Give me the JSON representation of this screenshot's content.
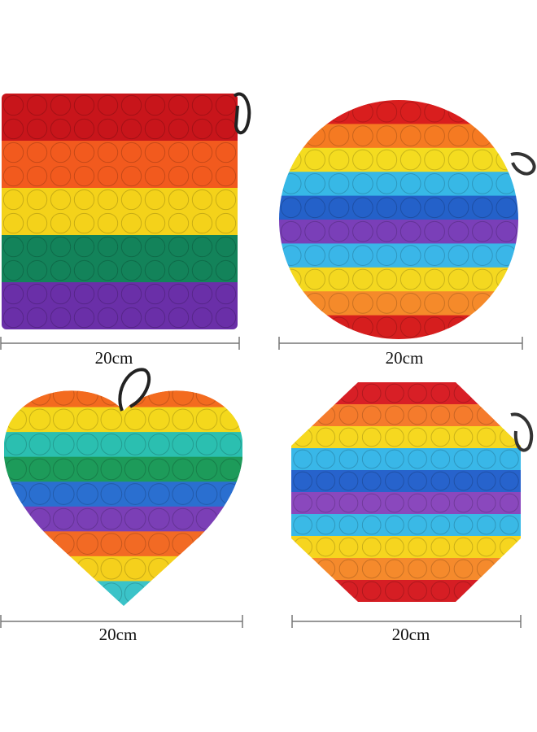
{
  "products": [
    {
      "shape": "square",
      "size_label": "20cm",
      "stripes": [
        "#c8151b",
        "#f25a1e",
        "#f4d21a",
        "#13835a",
        "#6a2fa8"
      ]
    },
    {
      "shape": "circle",
      "size_label": "20cm",
      "stripes": [
        "#d91e1e",
        "#f57a22",
        "#f4dc20",
        "#37b8e6",
        "#2461c9",
        "#7a3fb8",
        "#3ab6e8",
        "#f4d820",
        "#f58a2a",
        "#d61e1e"
      ]
    },
    {
      "shape": "heart",
      "size_label": "20cm",
      "stripes": [
        "#f36b1f",
        "#f4d81c",
        "#2bbfb0",
        "#1d9b5a",
        "#2a6fd0",
        "#7b3fb6",
        "#f26a24",
        "#f5d01c",
        "#3bc3c8"
      ]
    },
    {
      "shape": "octagon",
      "size_label": "20cm",
      "stripes": [
        "#d81f26",
        "#f57b2c",
        "#f6d820",
        "#39b7e8",
        "#2763cc",
        "#8a48bd",
        "#3ab9e6",
        "#f6d51f",
        "#f58a2c",
        "#d61e24"
      ]
    }
  ]
}
